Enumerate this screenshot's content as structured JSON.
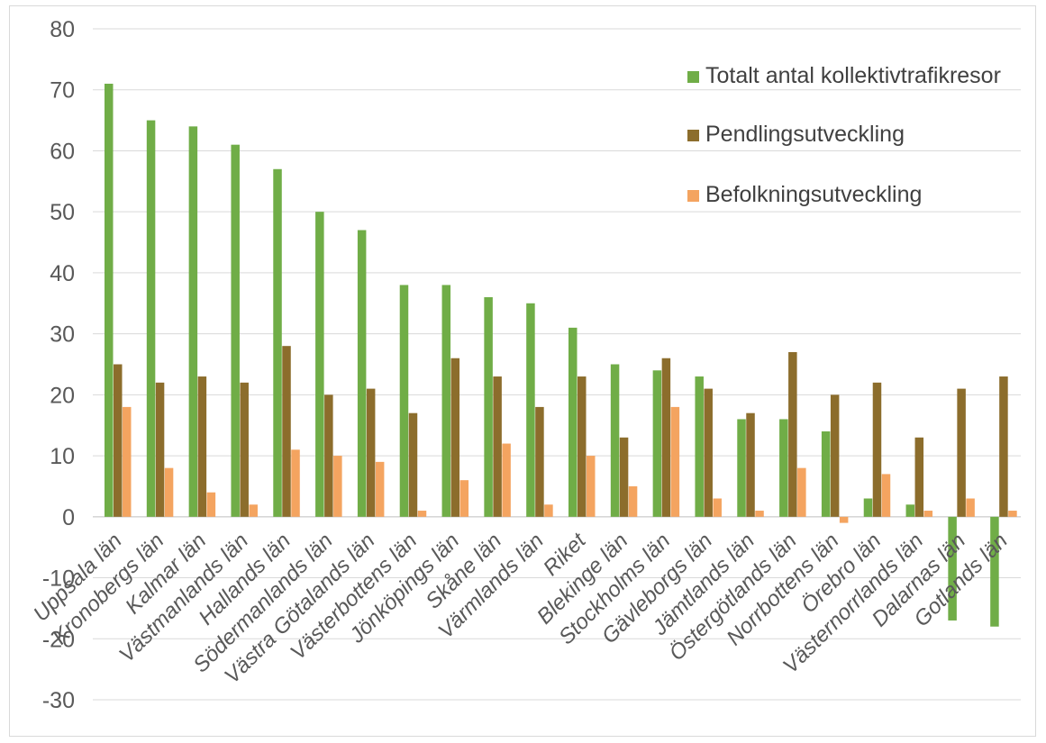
{
  "chart_data": {
    "type": "bar",
    "categories": [
      "Uppsala län",
      "Kronobergs län",
      "Kalmar län",
      "Västmanlands län",
      "Hallands län",
      "Södermanlands län",
      "Västra Götalands län",
      "Västerbottens län",
      "Jönköpings län",
      "Skåne län",
      "Värmlands län",
      "Riket",
      "Blekinge län",
      "Stockholms län",
      "Gävleborgs län",
      "Jämtlands län",
      "Östergötlands län",
      "Norrbottens län",
      "Örebro län",
      "Västernorrlands län",
      "Dalarnas län",
      "Gotlands län"
    ],
    "series": [
      {
        "name": "Totalt antal kollektivtrafikresor",
        "color": "#70ad47",
        "values": [
          71,
          65,
          64,
          61,
          57,
          50,
          47,
          38,
          38,
          36,
          35,
          31,
          25,
          24,
          23,
          16,
          16,
          14,
          3,
          2,
          -17,
          -18
        ]
      },
      {
        "name": "Pendlingsutveckling",
        "color": "#8c6d2c",
        "values": [
          25,
          22,
          23,
          22,
          28,
          20,
          21,
          17,
          26,
          23,
          18,
          23,
          13,
          26,
          21,
          17,
          27,
          20,
          22,
          13,
          21,
          23
        ]
      },
      {
        "name": "Befolkningsutveckling",
        "color": "#f4a460",
        "values": [
          18,
          8,
          4,
          2,
          11,
          10,
          9,
          1,
          6,
          12,
          2,
          10,
          5,
          18,
          3,
          1,
          8,
          -1,
          7,
          1,
          3,
          1
        ]
      }
    ],
    "yticks": [
      "80",
      "70",
      "60",
      "50",
      "40",
      "30",
      "20",
      "10",
      "0",
      "-10",
      "-20",
      "-30"
    ],
    "ylim": [
      -30,
      80
    ],
    "legend_position": "top-right",
    "grid": true
  }
}
